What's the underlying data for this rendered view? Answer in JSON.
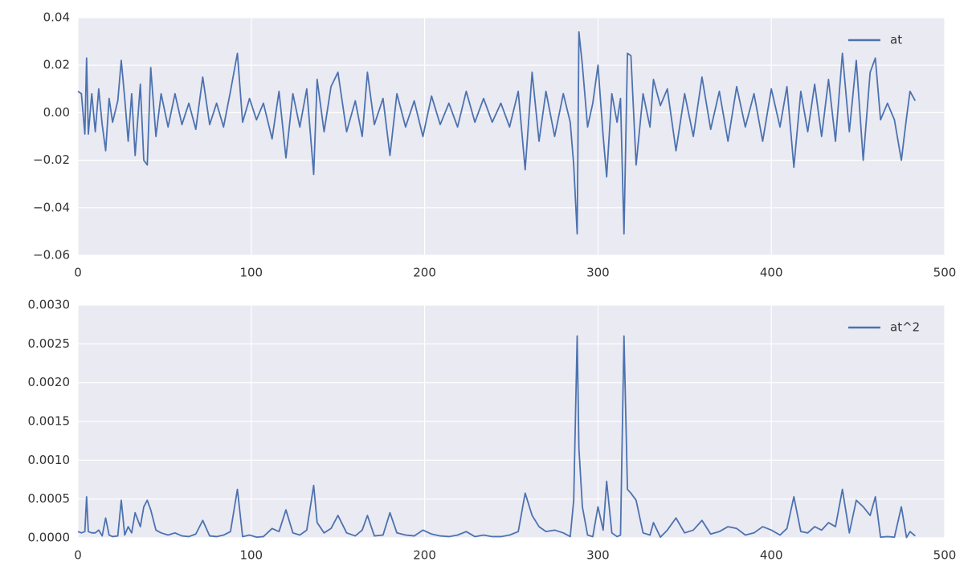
{
  "chart_data": [
    {
      "type": "line",
      "legend": "upper right",
      "grid": true,
      "xlim": [
        0,
        500
      ],
      "xticks": [
        0,
        100,
        200,
        300,
        400,
        500
      ],
      "ylim": [
        -0.06,
        0.04
      ],
      "yticks": [
        {
          "value": -0.06,
          "label": "−0.06"
        },
        {
          "value": -0.04,
          "label": "−0.04"
        },
        {
          "value": -0.02,
          "label": "−0.02"
        },
        {
          "value": 0,
          "label": "0.00"
        },
        0.02,
        0.04
      ],
      "x": [
        0,
        2,
        4,
        5,
        6,
        8,
        10,
        12,
        14,
        16,
        18,
        20,
        23,
        25,
        27,
        29,
        31,
        33,
        36,
        38,
        40,
        42,
        45,
        48,
        52,
        56,
        60,
        64,
        68,
        72,
        76,
        80,
        84,
        88,
        92,
        95,
        99,
        103,
        107,
        112,
        116,
        120,
        124,
        128,
        132,
        136,
        138,
        142,
        146,
        150,
        155,
        160,
        164,
        167,
        171,
        176,
        180,
        184,
        189,
        194,
        199,
        204,
        209,
        214,
        219,
        224,
        229,
        234,
        239,
        244,
        249,
        254,
        258,
        262,
        266,
        270,
        275,
        280,
        284,
        286,
        288,
        289,
        291,
        294,
        297,
        300,
        303,
        305,
        308,
        311,
        313,
        315,
        317,
        319,
        322,
        326,
        330,
        332,
        336,
        340,
        345,
        350,
        355,
        360,
        365,
        370,
        375,
        380,
        385,
        390,
        395,
        400,
        405,
        409,
        413,
        417,
        421,
        425,
        429,
        433,
        437,
        441,
        445,
        449,
        453,
        457,
        460,
        463,
        467,
        471,
        475,
        478,
        480,
        483
      ],
      "series": [
        {
          "name": "at",
          "color": "#4c72b0",
          "values": [
            0.009,
            0.008,
            -0.009,
            0.023,
            -0.009,
            0.008,
            -0.008,
            0.01,
            -0.005,
            -0.016,
            0.006,
            -0.004,
            0.005,
            0.022,
            0.006,
            -0.012,
            0.008,
            -0.018,
            0.012,
            -0.02,
            -0.022,
            0.019,
            -0.01,
            0.008,
            -0.006,
            0.008,
            -0.005,
            0.004,
            -0.007,
            0.015,
            -0.005,
            0.004,
            -0.006,
            0.009,
            0.025,
            -0.004,
            0.006,
            -0.003,
            0.004,
            -0.011,
            0.009,
            -0.019,
            0.008,
            -0.006,
            0.01,
            -0.026,
            0.014,
            -0.008,
            0.011,
            0.017,
            -0.008,
            0.005,
            -0.01,
            0.017,
            -0.005,
            0.006,
            -0.018,
            0.008,
            -0.006,
            0.005,
            -0.01,
            0.007,
            -0.005,
            0.004,
            -0.006,
            0.009,
            -0.004,
            0.006,
            -0.004,
            0.004,
            -0.006,
            0.009,
            -0.024,
            0.017,
            -0.012,
            0.009,
            -0.01,
            0.008,
            -0.004,
            -0.022,
            -0.051,
            0.034,
            0.02,
            -0.006,
            0.004,
            0.02,
            -0.01,
            -0.027,
            0.008,
            -0.004,
            0.006,
            -0.051,
            0.025,
            0.024,
            -0.022,
            0.008,
            -0.006,
            0.014,
            0.003,
            0.01,
            -0.016,
            0.008,
            -0.01,
            0.015,
            -0.007,
            0.009,
            -0.012,
            0.011,
            -0.006,
            0.008,
            -0.012,
            0.01,
            -0.006,
            0.011,
            -0.023,
            0.009,
            -0.008,
            0.012,
            -0.01,
            0.014,
            -0.012,
            0.025,
            -0.008,
            0.022,
            -0.02,
            0.017,
            0.023,
            -0.003,
            0.004,
            -0.003,
            -0.02,
            -0.002,
            0.009,
            0.005
          ]
        }
      ]
    },
    {
      "type": "line",
      "legend": "upper right",
      "grid": true,
      "xlim": [
        0,
        500
      ],
      "xticks": [
        0,
        100,
        200,
        300,
        400,
        500
      ],
      "ylim": [
        0,
        0.003
      ],
      "yticks": [
        {
          "value": 0,
          "label": "0.0000"
        },
        {
          "value": 0.0005,
          "label": "0.0005"
        },
        {
          "value": 0.001,
          "label": "0.0010"
        },
        {
          "value": 0.0015,
          "label": "0.0015"
        },
        {
          "value": 0.002,
          "label": "0.0020"
        },
        {
          "value": 0.0025,
          "label": "0.0025"
        },
        {
          "value": 0.003,
          "label": "0.0030"
        }
      ],
      "x": [
        0,
        2,
        4,
        5,
        6,
        8,
        10,
        12,
        14,
        16,
        18,
        20,
        23,
        25,
        27,
        29,
        31,
        33,
        36,
        38,
        40,
        42,
        45,
        48,
        52,
        56,
        60,
        64,
        68,
        72,
        76,
        80,
        84,
        88,
        92,
        95,
        99,
        103,
        107,
        112,
        116,
        120,
        124,
        128,
        132,
        136,
        138,
        142,
        146,
        150,
        155,
        160,
        164,
        167,
        171,
        176,
        180,
        184,
        189,
        194,
        199,
        204,
        209,
        214,
        219,
        224,
        229,
        234,
        239,
        244,
        249,
        254,
        258,
        262,
        266,
        270,
        275,
        280,
        284,
        286,
        288,
        289,
        291,
        294,
        297,
        300,
        303,
        305,
        308,
        311,
        313,
        315,
        317,
        319,
        322,
        326,
        330,
        332,
        336,
        340,
        345,
        350,
        355,
        360,
        365,
        370,
        375,
        380,
        385,
        390,
        395,
        400,
        405,
        409,
        413,
        417,
        421,
        425,
        429,
        433,
        437,
        441,
        445,
        449,
        453,
        457,
        460,
        463,
        467,
        471,
        475,
        478,
        480,
        483
      ],
      "series": [
        {
          "name": "at^2",
          "color": "#4c72b0",
          "values": [
            8.1e-05,
            6.4e-05,
            8.1e-05,
            0.000529,
            8.1e-05,
            6.4e-05,
            6.4e-05,
            0.0001,
            2.5e-05,
            0.000256,
            3.6e-05,
            1.6e-05,
            2.5e-05,
            0.000484,
            3.6e-05,
            0.000144,
            6.4e-05,
            0.000324,
            0.000144,
            0.0004,
            0.000484,
            0.000361,
            0.0001,
            6.4e-05,
            3.6e-05,
            6.4e-05,
            2.5e-05,
            1.6e-05,
            4.9e-05,
            0.000225,
            2.5e-05,
            1.6e-05,
            3.6e-05,
            8.1e-05,
            0.000625,
            1.6e-05,
            3.6e-05,
            9e-06,
            1.6e-05,
            0.000121,
            8.1e-05,
            0.000361,
            6.4e-05,
            3.6e-05,
            0.0001,
            0.000676,
            0.000196,
            6.4e-05,
            0.000121,
            0.000289,
            6.4e-05,
            2.5e-05,
            0.0001,
            0.000289,
            2.5e-05,
            3.6e-05,
            0.000324,
            6.4e-05,
            3.6e-05,
            2.5e-05,
            0.0001,
            4.9e-05,
            2.5e-05,
            1.6e-05,
            3.6e-05,
            8.1e-05,
            1.6e-05,
            3.6e-05,
            1.6e-05,
            1.6e-05,
            3.6e-05,
            8.1e-05,
            0.000576,
            0.000289,
            0.000144,
            8.1e-05,
            0.0001,
            6.4e-05,
            1.6e-05,
            0.000484,
            0.002601,
            0.001156,
            0.0004,
            3.6e-05,
            1.6e-05,
            0.0004,
            0.0001,
            0.000729,
            6.4e-05,
            1.6e-05,
            3.6e-05,
            0.002601,
            0.000625,
            0.000576,
            0.000484,
            6.4e-05,
            3.6e-05,
            0.000196,
            9e-06,
            0.0001,
            0.000256,
            6.4e-05,
            0.0001,
            0.000225,
            4.9e-05,
            8.1e-05,
            0.000144,
            0.000121,
            3.6e-05,
            6.4e-05,
            0.000144,
            0.0001,
            3.6e-05,
            0.000121,
            0.000529,
            8.1e-05,
            6.4e-05,
            0.000144,
            0.0001,
            0.000196,
            0.000144,
            0.000625,
            6.4e-05,
            0.000484,
            0.0004,
            0.000289,
            0.000529,
            9e-06,
            1.6e-05,
            9e-06,
            0.0004,
            4e-06,
            8.1e-05,
            2.5e-05
          ]
        }
      ]
    }
  ]
}
